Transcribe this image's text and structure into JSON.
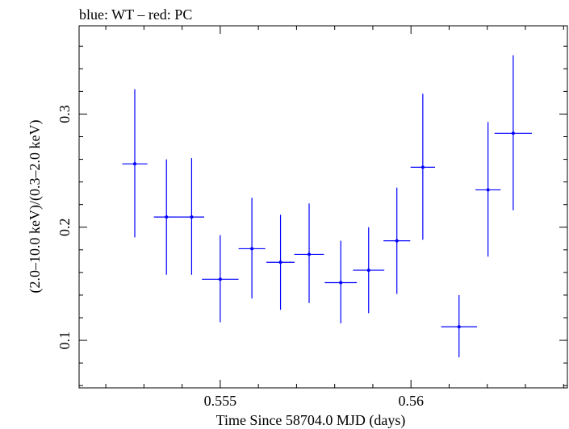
{
  "chart_data": {
    "type": "scatter",
    "title": "blue: WT – red: PC",
    "xlabel": "Time Since 58704.0 MJD (days)",
    "ylabel": "(2.0–10.0 keV)/(0.3–2.0 keV)",
    "xlim": [
      0.5513,
      0.5641
    ],
    "ylim": [
      0.058,
      0.378
    ],
    "x_ticks": [
      {
        "value": 0.555,
        "label": "0.555"
      },
      {
        "value": 0.56,
        "label": "0.56"
      }
    ],
    "y_ticks": [
      {
        "value": 0.1,
        "label": "0.1"
      },
      {
        "value": 0.2,
        "label": "0.2"
      },
      {
        "value": 0.3,
        "label": "0.3"
      }
    ],
    "grid": false,
    "series": [
      {
        "color": "#0000ff",
        "points": [
          {
            "x": 0.55276,
            "xerr": 0.00033,
            "y": 0.256,
            "ylo": 0.191,
            "yhi": 0.322
          },
          {
            "x": 0.55359,
            "xerr": 0.00033,
            "y": 0.209,
            "ylo": 0.158,
            "yhi": 0.26
          },
          {
            "x": 0.55425,
            "xerr": 0.00033,
            "y": 0.209,
            "ylo": 0.158,
            "yhi": 0.261
          },
          {
            "x": 0.555,
            "xerr": 0.00048,
            "y": 0.154,
            "ylo": 0.116,
            "yhi": 0.193
          },
          {
            "x": 0.55583,
            "xerr": 0.00035,
            "y": 0.181,
            "ylo": 0.137,
            "yhi": 0.226
          },
          {
            "x": 0.55658,
            "xerr": 0.00037,
            "y": 0.169,
            "ylo": 0.127,
            "yhi": 0.211
          },
          {
            "x": 0.55733,
            "xerr": 0.00039,
            "y": 0.176,
            "ylo": 0.133,
            "yhi": 0.221
          },
          {
            "x": 0.55816,
            "xerr": 0.00042,
            "y": 0.151,
            "ylo": 0.115,
            "yhi": 0.188
          },
          {
            "x": 0.55889,
            "xerr": 0.00041,
            "y": 0.162,
            "ylo": 0.124,
            "yhi": 0.2
          },
          {
            "x": 0.55963,
            "xerr": 0.00035,
            "y": 0.188,
            "ylo": 0.141,
            "yhi": 0.235
          },
          {
            "x": 0.56031,
            "xerr": 0.00032,
            "y": 0.253,
            "ylo": 0.189,
            "yhi": 0.318
          },
          {
            "x": 0.56126,
            "xerr": 0.00047,
            "y": 0.112,
            "ylo": 0.085,
            "yhi": 0.14
          },
          {
            "x": 0.56202,
            "xerr": 0.00033,
            "y": 0.233,
            "ylo": 0.174,
            "yhi": 0.293
          },
          {
            "x": 0.56268,
            "xerr": 0.00049,
            "y": 0.283,
            "ylo": 0.215,
            "yhi": 0.352
          }
        ]
      }
    ]
  }
}
